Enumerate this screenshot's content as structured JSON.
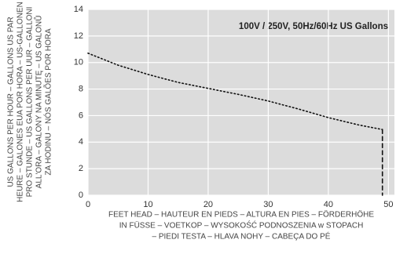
{
  "chart_data": {
    "type": "line",
    "annotation": "100V / 250V, 50Hz/60Hz US Gallons",
    "x_label": [
      "FEET HEAD – HAUTEUR EN PIEDS – ALTURA EN PIES – FÖRDERHÖHE",
      "IN FÜSSE – VOETKOP – WYSOKOŚĆ PODNOSZENIA w STOPACH",
      "– PIEDI TESTA – HLAVA NOHY – CABEÇA DO PÉ"
    ],
    "y_label": [
      "US GALLONS PER HOUR – GALLONS US PAR",
      "HEURE – GALONES EUA POR HORA – US-GALLONEN",
      "PRO STUNDE – US GALLONS PER UUR – GALLONI",
      "ALL'ORA – GALONY NA MINUTĘ – US GALONŮ",
      "ZA HODINU – NÓS GALÕES POR HORA"
    ],
    "series": [
      {
        "color": "#111111",
        "style": "dotted",
        "x": [
          0,
          5,
          10,
          15,
          20,
          25,
          30,
          35,
          40,
          45,
          49
        ],
        "values": [
          10.7,
          9.8,
          9.1,
          8.5,
          8.05,
          7.6,
          7.1,
          6.5,
          5.85,
          5.3,
          4.95
        ]
      },
      {
        "color": "#111111",
        "style": "dashed",
        "x": [
          49,
          49
        ],
        "values": [
          4.95,
          0
        ]
      }
    ],
    "xlim": [
      0,
      51
    ],
    "xticks": [
      0,
      10,
      20,
      30,
      40,
      50
    ],
    "ylim": [
      0,
      14
    ],
    "yticks": [
      0,
      2,
      4,
      6,
      8,
      10,
      12,
      14
    ],
    "grid": true
  }
}
